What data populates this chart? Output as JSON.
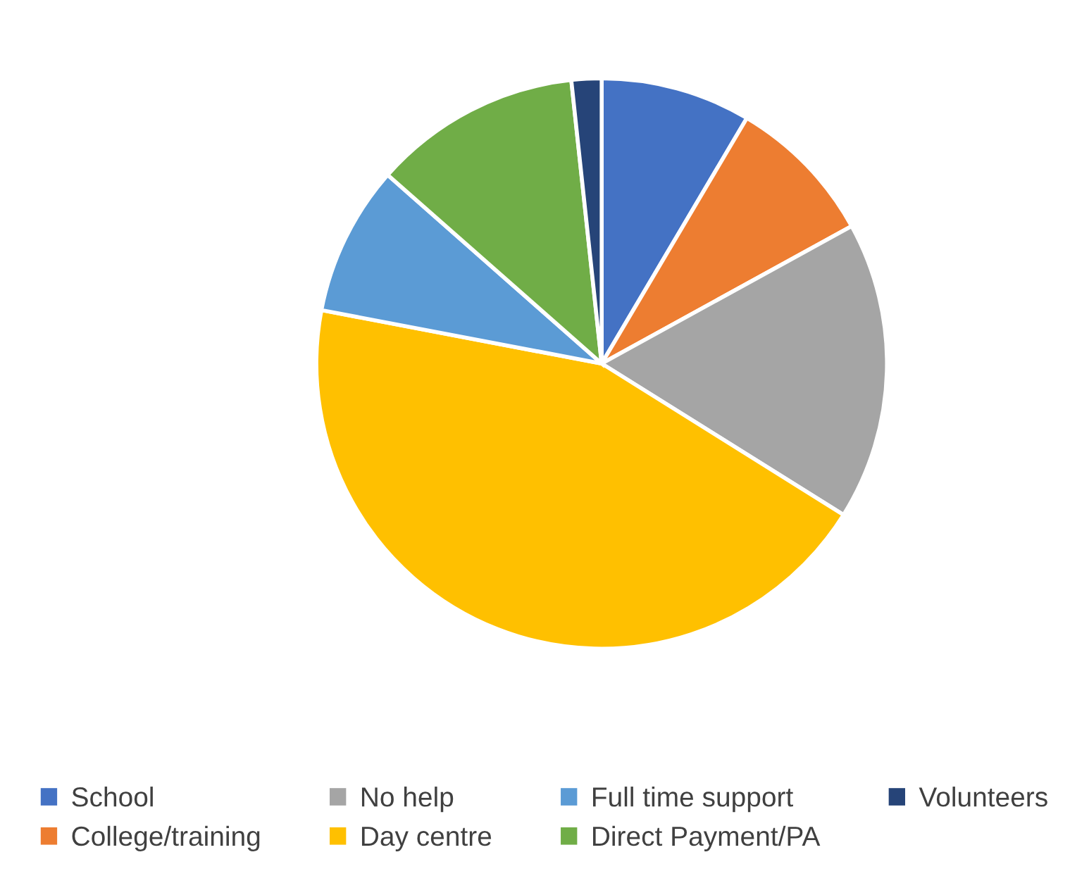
{
  "chart_data": {
    "type": "pie",
    "categories": [
      "School",
      "College/training",
      "No help",
      "Day centre",
      "Full time support",
      "Direct Payment/PA",
      "Volunteers"
    ],
    "values": [
      8.5,
      8.5,
      16.9,
      44.1,
      8.5,
      11.8,
      1.7
    ],
    "colors": [
      "#4472c4",
      "#ed7d31",
      "#a5a5a5",
      "#ffc000",
      "#5b9bd5",
      "#70ad47",
      "#264478"
    ],
    "legend": "bottom"
  }
}
